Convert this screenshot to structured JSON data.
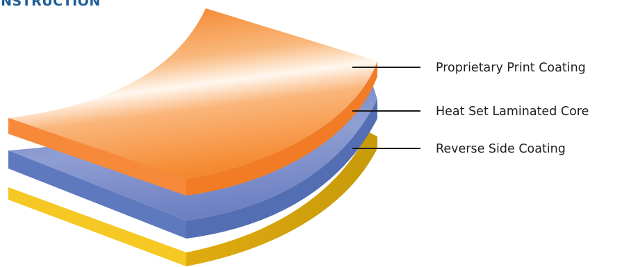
{
  "heading": "CONSTRUCTION",
  "layers": [
    {
      "label": "Proprietary Print Coating",
      "color": "#f7913d"
    },
    {
      "label": "Heat Set Laminated Core",
      "color": "#6f83c4"
    },
    {
      "label": "Reverse Side Coating",
      "color": "#f5cb2a"
    }
  ]
}
